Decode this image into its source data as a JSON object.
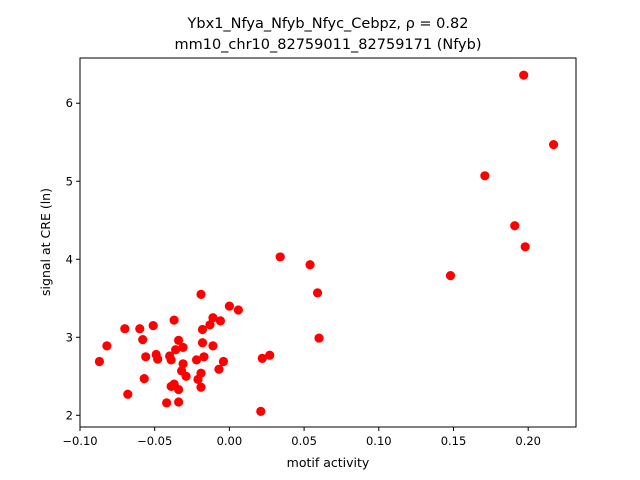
{
  "chart_data": {
    "type": "scatter",
    "title_line1": "Ybx1_Nfya_Nfyb_Nfyc_Cebpz, ρ = 0.82",
    "title_line2": "mm10_chr10_82759011_82759171 (Nfyb)",
    "xlabel": "motif activity",
    "ylabel": "signal at CRE (ln)",
    "xlim": [
      -0.1,
      0.232
    ],
    "ylim": [
      1.85,
      6.58
    ],
    "xticks": [
      -0.1,
      -0.05,
      0.0,
      0.05,
      0.1,
      0.15,
      0.2
    ],
    "xtick_labels": [
      "−0.10",
      "−0.05",
      "0.00",
      "0.05",
      "0.10",
      "0.15",
      "0.20"
    ],
    "yticks": [
      2,
      3,
      4,
      5,
      6
    ],
    "ytick_labels": [
      "2",
      "3",
      "4",
      "5",
      "6"
    ],
    "grid": false,
    "marker_color": "#ff0000",
    "points": [
      {
        "x": 0.197,
        "y": 6.36
      },
      {
        "x": 0.217,
        "y": 5.47
      },
      {
        "x": 0.171,
        "y": 5.07
      },
      {
        "x": 0.191,
        "y": 4.43
      },
      {
        "x": 0.198,
        "y": 4.16
      },
      {
        "x": 0.148,
        "y": 3.79
      },
      {
        "x": 0.034,
        "y": 4.03
      },
      {
        "x": 0.054,
        "y": 3.93
      },
      {
        "x": 0.059,
        "y": 3.57
      },
      {
        "x": 0.06,
        "y": 2.99
      },
      {
        "x": 0.027,
        "y": 2.77
      },
      {
        "x": 0.022,
        "y": 2.73
      },
      {
        "x": 0.021,
        "y": 2.05
      },
      {
        "x": 0.006,
        "y": 3.35
      },
      {
        "x": 0.0,
        "y": 3.4
      },
      {
        "x": -0.019,
        "y": 3.55
      },
      {
        "x": -0.011,
        "y": 3.25
      },
      {
        "x": -0.006,
        "y": 3.21
      },
      {
        "x": -0.013,
        "y": 3.16
      },
      {
        "x": -0.018,
        "y": 3.1
      },
      {
        "x": -0.018,
        "y": 2.93
      },
      {
        "x": -0.011,
        "y": 2.89
      },
      {
        "x": -0.017,
        "y": 2.75
      },
      {
        "x": -0.022,
        "y": 2.71
      },
      {
        "x": -0.004,
        "y": 2.69
      },
      {
        "x": -0.007,
        "y": 2.59
      },
      {
        "x": -0.019,
        "y": 2.54
      },
      {
        "x": -0.021,
        "y": 2.46
      },
      {
        "x": -0.019,
        "y": 2.36
      },
      {
        "x": -0.037,
        "y": 3.22
      },
      {
        "x": -0.034,
        "y": 2.96
      },
      {
        "x": -0.036,
        "y": 2.84
      },
      {
        "x": -0.031,
        "y": 2.87
      },
      {
        "x": -0.04,
        "y": 2.76
      },
      {
        "x": -0.039,
        "y": 2.71
      },
      {
        "x": -0.031,
        "y": 2.66
      },
      {
        "x": -0.032,
        "y": 2.57
      },
      {
        "x": -0.029,
        "y": 2.5
      },
      {
        "x": -0.037,
        "y": 2.4
      },
      {
        "x": -0.039,
        "y": 2.37
      },
      {
        "x": -0.034,
        "y": 2.33
      },
      {
        "x": -0.034,
        "y": 2.17
      },
      {
        "x": -0.042,
        "y": 2.16
      },
      {
        "x": -0.051,
        "y": 3.15
      },
      {
        "x": -0.06,
        "y": 3.11
      },
      {
        "x": -0.07,
        "y": 3.11
      },
      {
        "x": -0.058,
        "y": 2.97
      },
      {
        "x": -0.082,
        "y": 2.89
      },
      {
        "x": -0.049,
        "y": 2.78
      },
      {
        "x": -0.056,
        "y": 2.75
      },
      {
        "x": -0.048,
        "y": 2.72
      },
      {
        "x": -0.087,
        "y": 2.69
      },
      {
        "x": -0.057,
        "y": 2.47
      },
      {
        "x": -0.068,
        "y": 2.27
      }
    ]
  }
}
